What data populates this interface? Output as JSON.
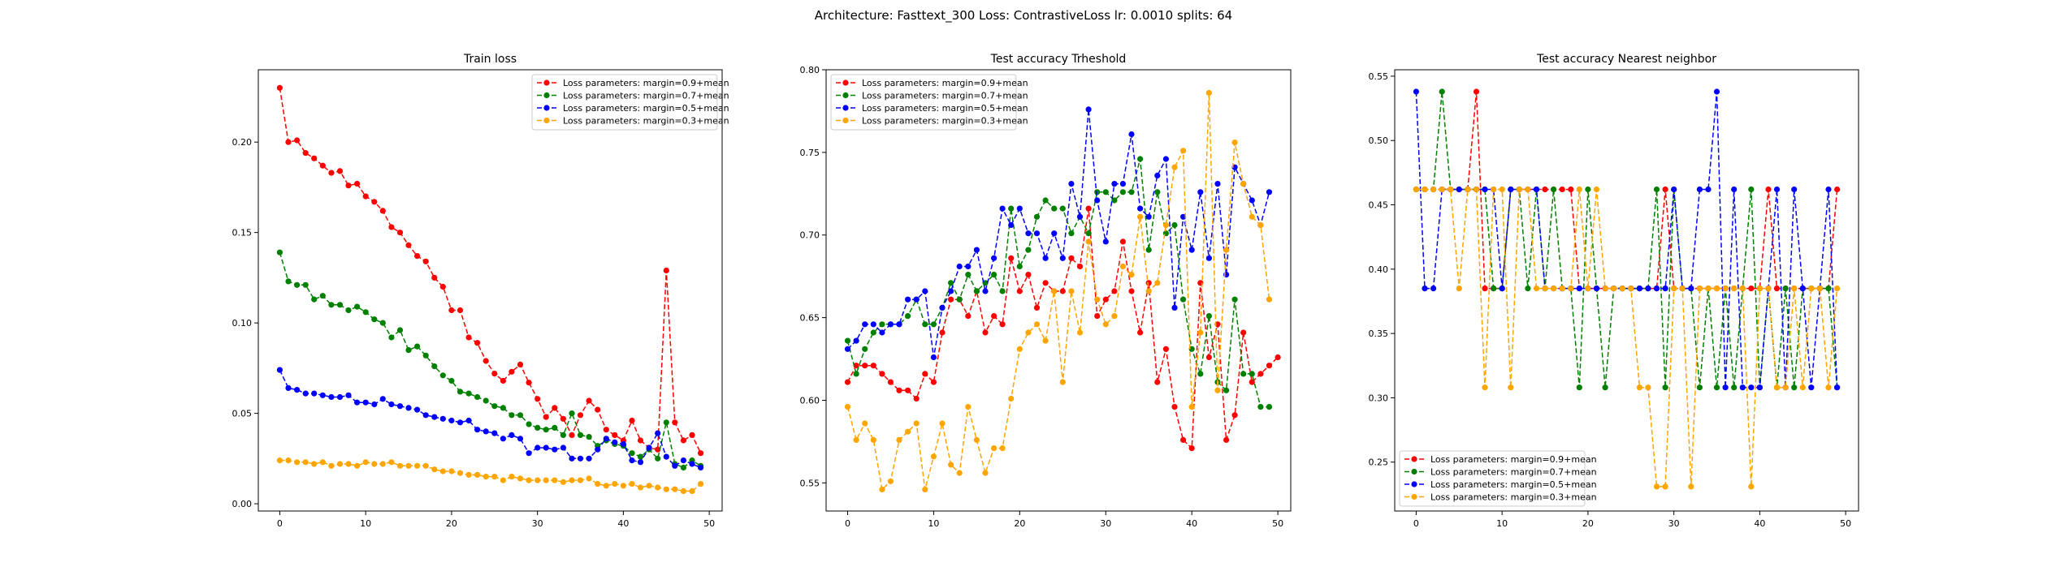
{
  "suptitle": "Architecture: Fasttext_300 Loss: ContrastiveLoss lr: 0.0010 splits: 64",
  "colors": {
    "s09": "#ff0000",
    "s07": "#008000",
    "s05": "#0000ff",
    "s03": "#ffa500"
  },
  "chart_data": [
    {
      "type": "line",
      "title": "Train loss",
      "xlabel": "",
      "ylabel": "",
      "xlim": [
        -2.5,
        51.5
      ],
      "ylim": [
        -0.004,
        0.24
      ],
      "xticks": [
        0,
        10,
        20,
        30,
        40,
        50
      ],
      "yticks": [
        0.0,
        0.05,
        0.1,
        0.15,
        0.2
      ],
      "ytick_labels": [
        "0.00",
        "0.05",
        "0.10",
        "0.15",
        "0.20"
      ],
      "grid": false,
      "legend_loc": "upper right",
      "series": [
        {
          "name": "Loss parameters: margin=0.9+mean",
          "color": "#ff0000",
          "values": [
            0.23,
            0.2,
            0.201,
            0.194,
            0.191,
            0.187,
            0.183,
            0.184,
            0.176,
            0.177,
            0.17,
            0.167,
            0.162,
            0.153,
            0.15,
            0.143,
            0.137,
            0.134,
            0.125,
            0.12,
            0.107,
            0.107,
            0.092,
            0.089,
            0.079,
            0.072,
            0.068,
            0.073,
            0.077,
            0.067,
            0.058,
            0.048,
            0.053,
            0.047,
            0.038,
            0.049,
            0.057,
            0.052,
            0.041,
            0.038,
            0.035,
            0.046,
            0.035,
            0.031,
            0.03,
            0.129,
            0.045,
            0.035,
            0.038,
            0.028
          ]
        },
        {
          "name": "Loss parameters: margin=0.7+mean",
          "color": "#008000",
          "values": [
            0.139,
            0.123,
            0.121,
            0.121,
            0.113,
            0.115,
            0.11,
            0.11,
            0.107,
            0.109,
            0.106,
            0.102,
            0.1,
            0.092,
            0.096,
            0.085,
            0.087,
            0.082,
            0.076,
            0.071,
            0.068,
            0.062,
            0.061,
            0.059,
            0.057,
            0.054,
            0.053,
            0.049,
            0.049,
            0.044,
            0.042,
            0.041,
            0.042,
            0.038,
            0.05,
            0.038,
            0.037,
            0.032,
            0.035,
            0.033,
            0.032,
            0.028,
            0.026,
            0.03,
            0.025,
            0.045,
            0.022,
            0.02,
            0.024,
            0.021
          ]
        },
        {
          "name": "Loss parameters: margin=0.5+mean",
          "color": "#0000ff",
          "values": [
            0.074,
            0.064,
            0.063,
            0.061,
            0.061,
            0.06,
            0.059,
            0.059,
            0.06,
            0.056,
            0.056,
            0.055,
            0.058,
            0.055,
            0.054,
            0.053,
            0.052,
            0.049,
            0.048,
            0.047,
            0.046,
            0.045,
            0.046,
            0.041,
            0.04,
            0.039,
            0.036,
            0.038,
            0.036,
            0.028,
            0.031,
            0.031,
            0.03,
            0.031,
            0.025,
            0.025,
            0.025,
            0.03,
            0.036,
            0.034,
            0.033,
            0.024,
            0.023,
            0.031,
            0.039,
            0.026,
            0.021,
            0.024,
            0.022,
            0.02
          ]
        },
        {
          "name": "Loss parameters: margin=0.3+mean",
          "color": "#ffa500",
          "values": [
            0.024,
            0.024,
            0.023,
            0.023,
            0.022,
            0.023,
            0.021,
            0.022,
            0.022,
            0.021,
            0.023,
            0.022,
            0.022,
            0.023,
            0.021,
            0.021,
            0.021,
            0.021,
            0.019,
            0.018,
            0.018,
            0.017,
            0.016,
            0.016,
            0.015,
            0.015,
            0.013,
            0.015,
            0.014,
            0.013,
            0.013,
            0.013,
            0.013,
            0.012,
            0.013,
            0.013,
            0.014,
            0.011,
            0.01,
            0.011,
            0.01,
            0.011,
            0.009,
            0.01,
            0.009,
            0.008,
            0.008,
            0.007,
            0.007,
            0.011
          ]
        }
      ]
    },
    {
      "type": "line",
      "title": "Test accuracy Trheshold",
      "xlabel": "",
      "ylabel": "",
      "xlim": [
        -2.5,
        51.5
      ],
      "ylim": [
        0.533,
        0.8
      ],
      "xticks": [
        0,
        10,
        20,
        30,
        40,
        50
      ],
      "yticks": [
        0.55,
        0.6,
        0.65,
        0.7,
        0.75,
        0.8
      ],
      "ytick_labels": [
        "0.55",
        "0.60",
        "0.65",
        "0.70",
        "0.75",
        "0.80"
      ],
      "grid": false,
      "legend_loc": "upper left",
      "series": [
        {
          "name": "Loss parameters: margin=0.9+mean",
          "color": "#ff0000",
          "values": [
            0.611,
            0.621,
            0.621,
            0.621,
            0.616,
            0.611,
            0.606,
            0.606,
            0.601,
            0.616,
            0.611,
            0.641,
            0.661,
            0.661,
            0.651,
            0.666,
            0.641,
            0.651,
            0.646,
            0.686,
            0.666,
            0.676,
            0.656,
            0.671,
            0.666,
            0.666,
            0.686,
            0.681,
            0.716,
            0.651,
            0.661,
            0.666,
            0.696,
            0.666,
            0.641,
            0.671,
            0.611,
            0.631,
            0.596,
            0.576,
            0.571,
            0.671,
            0.626,
            0.646,
            0.576,
            0.591,
            0.641,
            0.611,
            0.616,
            0.621,
            0.626
          ]
        },
        {
          "name": "Loss parameters: margin=0.7+mean",
          "color": "#008000",
          "values": [
            0.636,
            0.616,
            0.631,
            0.641,
            0.646,
            0.646,
            0.646,
            0.651,
            0.661,
            0.646,
            0.646,
            0.656,
            0.671,
            0.661,
            0.676,
            0.666,
            0.671,
            0.676,
            0.666,
            0.716,
            0.681,
            0.691,
            0.711,
            0.721,
            0.716,
            0.716,
            0.701,
            0.711,
            0.701,
            0.726,
            0.726,
            0.721,
            0.726,
            0.726,
            0.746,
            0.691,
            0.726,
            0.701,
            0.706,
            0.661,
            0.631,
            0.616,
            0.651,
            0.611,
            0.606,
            0.661,
            0.616,
            0.616,
            0.596,
            0.596
          ]
        },
        {
          "name": "Loss parameters: margin=0.5+mean",
          "color": "#0000ff",
          "values": [
            0.631,
            0.636,
            0.646,
            0.646,
            0.641,
            0.646,
            0.646,
            0.661,
            0.661,
            0.666,
            0.626,
            0.656,
            0.666,
            0.681,
            0.681,
            0.691,
            0.666,
            0.686,
            0.716,
            0.706,
            0.716,
            0.701,
            0.701,
            0.686,
            0.701,
            0.686,
            0.731,
            0.711,
            0.776,
            0.721,
            0.696,
            0.731,
            0.731,
            0.761,
            0.716,
            0.711,
            0.736,
            0.746,
            0.656,
            0.711,
            0.691,
            0.726,
            0.686,
            0.731,
            0.676,
            0.741,
            0.731,
            0.721,
            0.706,
            0.726
          ]
        },
        {
          "name": "Loss parameters: margin=0.3+mean",
          "color": "#ffa500",
          "values": [
            0.596,
            0.576,
            0.586,
            0.576,
            0.546,
            0.551,
            0.576,
            0.581,
            0.586,
            0.546,
            0.566,
            0.586,
            0.561,
            0.556,
            0.596,
            0.576,
            0.556,
            0.571,
            0.571,
            0.601,
            0.631,
            0.641,
            0.646,
            0.636,
            0.666,
            0.611,
            0.666,
            0.641,
            0.696,
            0.661,
            0.646,
            0.651,
            0.681,
            0.676,
            0.711,
            0.666,
            0.671,
            0.706,
            0.741,
            0.751,
            0.596,
            0.641,
            0.786,
            0.606,
            0.691,
            0.756,
            0.731,
            0.711,
            0.706,
            0.661
          ]
        }
      ]
    },
    {
      "type": "line",
      "title": "Test accuracy Nearest neighbor",
      "xlabel": "",
      "ylabel": "",
      "xlim": [
        -2.5,
        51.5
      ],
      "ylim": [
        0.212,
        0.555
      ],
      "xticks": [
        0,
        10,
        20,
        30,
        40,
        50
      ],
      "yticks": [
        0.25,
        0.3,
        0.35,
        0.4,
        0.45,
        0.5,
        0.55
      ],
      "ytick_labels": [
        "0.25",
        "0.30",
        "0.35",
        "0.40",
        "0.45",
        "0.50",
        "0.55"
      ],
      "grid": false,
      "legend_loc": "lower left",
      "series": [
        {
          "name": "Loss parameters: margin=0.9+mean",
          "color": "#ff0000",
          "values": [
            0.462,
            0.462,
            0.462,
            0.462,
            0.462,
            0.462,
            0.462,
            0.538,
            0.385,
            0.385,
            0.385,
            0.462,
            0.462,
            0.462,
            0.462,
            0.462,
            0.462,
            0.462,
            0.462,
            0.385,
            0.385,
            0.385,
            0.385,
            0.385,
            0.385,
            0.385,
            0.385,
            0.385,
            0.385,
            0.462,
            0.385,
            0.385,
            0.385,
            0.385,
            0.385,
            0.385,
            0.385,
            0.385,
            0.385,
            0.385,
            0.385,
            0.462,
            0.385,
            0.385,
            0.385,
            0.385,
            0.385,
            0.385,
            0.385,
            0.462
          ]
        },
        {
          "name": "Loss parameters: margin=0.7+mean",
          "color": "#008000",
          "values": [
            0.462,
            0.462,
            0.462,
            0.538,
            0.462,
            0.462,
            0.462,
            0.462,
            0.462,
            0.385,
            0.385,
            0.462,
            0.462,
            0.385,
            0.462,
            0.385,
            0.462,
            0.385,
            0.385,
            0.308,
            0.462,
            0.385,
            0.308,
            0.385,
            0.385,
            0.385,
            0.385,
            0.385,
            0.462,
            0.308,
            0.462,
            0.385,
            0.385,
            0.308,
            0.385,
            0.308,
            0.385,
            0.308,
            0.385,
            0.462,
            0.308,
            0.385,
            0.308,
            0.385,
            0.308,
            0.385,
            0.385,
            0.385,
            0.385,
            0.308
          ]
        },
        {
          "name": "Loss parameters: margin=0.5+mean",
          "color": "#0000ff",
          "values": [
            0.538,
            0.385,
            0.385,
            0.462,
            0.462,
            0.462,
            0.462,
            0.462,
            0.462,
            0.462,
            0.385,
            0.462,
            0.462,
            0.462,
            0.462,
            0.385,
            0.385,
            0.385,
            0.385,
            0.385,
            0.385,
            0.385,
            0.385,
            0.385,
            0.385,
            0.385,
            0.385,
            0.385,
            0.385,
            0.385,
            0.462,
            0.385,
            0.385,
            0.462,
            0.462,
            0.538,
            0.308,
            0.462,
            0.308,
            0.308,
            0.308,
            0.385,
            0.462,
            0.308,
            0.462,
            0.385,
            0.308,
            0.385,
            0.462,
            0.308
          ]
        },
        {
          "name": "Loss parameters: margin=0.3+mean",
          "color": "#ffa500",
          "values": [
            0.462,
            0.462,
            0.462,
            0.462,
            0.462,
            0.385,
            0.462,
            0.462,
            0.308,
            0.462,
            0.462,
            0.308,
            0.462,
            0.462,
            0.385,
            0.385,
            0.385,
            0.385,
            0.385,
            0.462,
            0.385,
            0.462,
            0.385,
            0.385,
            0.385,
            0.385,
            0.308,
            0.308,
            0.231,
            0.231,
            0.385,
            0.385,
            0.231,
            0.385,
            0.385,
            0.385,
            0.385,
            0.385,
            0.385,
            0.231,
            0.385,
            0.385,
            0.308,
            0.308,
            0.385,
            0.308,
            0.385,
            0.385,
            0.308,
            0.385
          ]
        }
      ]
    }
  ]
}
